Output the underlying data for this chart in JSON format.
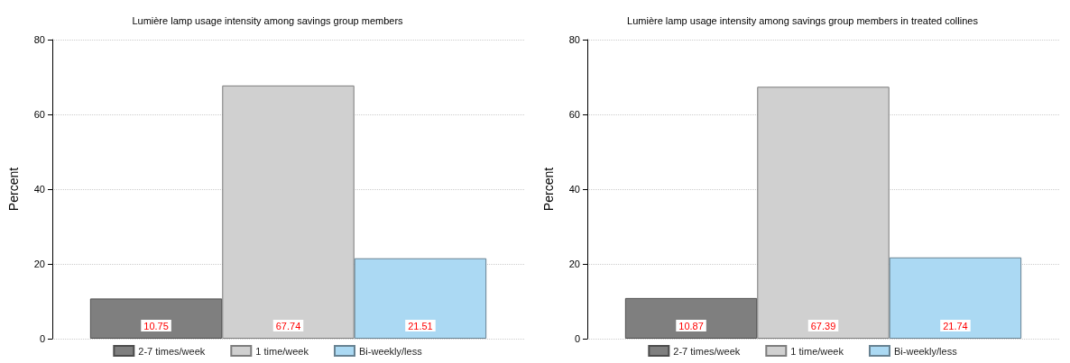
{
  "chart_data": [
    {
      "type": "bar",
      "title": "Lumière lamp usage intensity among savings group members",
      "ylabel": "Percent",
      "categories": [
        null
      ],
      "series": [
        {
          "name": "2-7 times/week",
          "color": "#7f7f7f",
          "values": [
            10.75
          ]
        },
        {
          "name": "1 time/week",
          "color": "#d0d0d0",
          "values": [
            67.74
          ]
        },
        {
          "name": "Bi-weekly/less",
          "color": "#abd9f3",
          "values": [
            21.51
          ]
        }
      ],
      "ylim": [
        0,
        80
      ],
      "yticks": [
        0,
        20,
        40,
        60,
        80
      ],
      "grid": "y",
      "legend": "bottom",
      "data_labels": true,
      "tick_labels": "y"
    },
    {
      "type": "bar",
      "title": "Lumière lamp usage intensity among savings group members in treated collines",
      "ylabel": "Percent",
      "categories": [
        null
      ],
      "series": [
        {
          "name": "2-7 times/week",
          "color": "#7f7f7f",
          "values": [
            10.87
          ]
        },
        {
          "name": "1 time/week",
          "color": "#d0d0d0",
          "values": [
            67.39
          ]
        },
        {
          "name": "Bi-weekly/less",
          "color": "#abd9f3",
          "values": [
            21.74
          ]
        }
      ],
      "ylim": [
        0,
        80
      ],
      "yticks": [
        0,
        20,
        40,
        60,
        80
      ],
      "grid": "y",
      "legend": "bottom",
      "data_labels": true,
      "tick_labels": "y"
    }
  ]
}
